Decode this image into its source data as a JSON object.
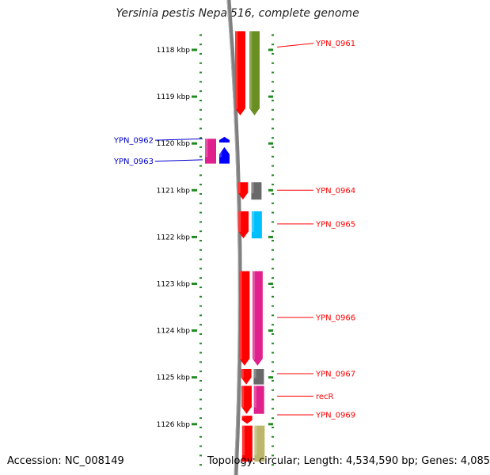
{
  "title": "Yersinia pestis Nepal516, complete genome",
  "accession_text": "Accession: NC_008149",
  "topology_text": "Topology: circular; Length: 4,534,590 bp; Genes: 4,085",
  "colors": {
    "ruler": "#228b22",
    "backbone": "#808080",
    "cds_red": "#ff0000",
    "olive": "#6b8e23",
    "magenta": "#e0208c",
    "blue": "#0000ff",
    "grey": "#696969",
    "cyan": "#00bfff",
    "khaki": "#bdb76b",
    "label_red": "#ff0000",
    "label_blue": "#0000cc"
  },
  "ruler": {
    "ticks": [
      "1118 kbp",
      "1119 kbp",
      "1120 kbp",
      "1121 kbp",
      "1122 kbp",
      "1123 kbp",
      "1124 kbp",
      "1125 kbp",
      "1126 kbp"
    ],
    "start_kbp": 1117.6,
    "end_kbp": 1126.8
  },
  "features": [
    {
      "lane": "inner_red",
      "start_kbp": 1117.6,
      "end_kbp": 1119.4,
      "color": "cds_red",
      "strand": "-"
    },
    {
      "lane": "outer",
      "start_kbp": 1117.6,
      "end_kbp": 1119.4,
      "color": "olive",
      "strand": "-"
    },
    {
      "lane": "left_a",
      "start_kbp": 1119.9,
      "end_kbp": 1120.43,
      "color": "magenta",
      "strand": "none"
    },
    {
      "lane": "left_b",
      "start_kbp": 1119.86,
      "end_kbp": 1119.98,
      "color": "blue",
      "strand": "+"
    },
    {
      "lane": "left_b",
      "start_kbp": 1120.08,
      "end_kbp": 1120.43,
      "color": "blue",
      "strand": "+"
    },
    {
      "lane": "inner_red",
      "start_kbp": 1120.83,
      "end_kbp": 1121.2,
      "color": "cds_red",
      "strand": "-"
    },
    {
      "lane": "outer",
      "start_kbp": 1120.83,
      "end_kbp": 1121.2,
      "color": "grey",
      "strand": "none"
    },
    {
      "lane": "inner_red",
      "start_kbp": 1121.45,
      "end_kbp": 1122.03,
      "color": "cds_red",
      "strand": "-"
    },
    {
      "lane": "outer",
      "start_kbp": 1121.45,
      "end_kbp": 1122.03,
      "color": "cyan",
      "strand": "none"
    },
    {
      "lane": "inner_red",
      "start_kbp": 1122.73,
      "end_kbp": 1124.75,
      "color": "cds_red",
      "strand": "-"
    },
    {
      "lane": "outer",
      "start_kbp": 1122.73,
      "end_kbp": 1124.75,
      "color": "magenta",
      "strand": "-"
    },
    {
      "lane": "inner_red",
      "start_kbp": 1124.82,
      "end_kbp": 1125.15,
      "color": "cds_red",
      "strand": "-"
    },
    {
      "lane": "outer",
      "start_kbp": 1124.82,
      "end_kbp": 1125.15,
      "color": "grey",
      "strand": "none"
    },
    {
      "lane": "inner_red",
      "start_kbp": 1125.18,
      "end_kbp": 1125.78,
      "color": "cds_red",
      "strand": "-"
    },
    {
      "lane": "outer",
      "start_kbp": 1125.18,
      "end_kbp": 1125.78,
      "color": "magenta",
      "strand": "none"
    },
    {
      "lane": "inner_red",
      "start_kbp": 1125.82,
      "end_kbp": 1125.99,
      "color": "cds_red",
      "strand": "-"
    },
    {
      "lane": "inner_red",
      "start_kbp": 1126.03,
      "end_kbp": 1126.8,
      "color": "cds_red",
      "strand": "none"
    },
    {
      "lane": "outer",
      "start_kbp": 1126.03,
      "end_kbp": 1126.8,
      "color": "khaki",
      "strand": "none"
    }
  ],
  "labels_right": [
    {
      "text": "YPN_0961",
      "kbp": 1117.86,
      "anchor_kbp": 1117.94
    },
    {
      "text": "YPN_0964",
      "kbp": 1121.0,
      "anchor_kbp": 1121.0
    },
    {
      "text": "YPN_0965",
      "kbp": 1121.72,
      "anchor_kbp": 1121.72
    },
    {
      "text": "YPN_0966",
      "kbp": 1123.72,
      "anchor_kbp": 1123.72
    },
    {
      "text": "YPN_0967",
      "kbp": 1124.92,
      "anchor_kbp": 1124.92
    },
    {
      "text": "recR",
      "kbp": 1125.4,
      "anchor_kbp": 1125.4
    },
    {
      "text": "YPN_0969",
      "kbp": 1125.8,
      "anchor_kbp": 1125.8
    }
  ],
  "labels_left": [
    {
      "text": "YPN_0962",
      "kbp": 1119.93,
      "anchor_kbp": 1119.9
    },
    {
      "text": "YPN_0963",
      "kbp": 1120.38,
      "anchor_kbp": 1120.35
    }
  ]
}
